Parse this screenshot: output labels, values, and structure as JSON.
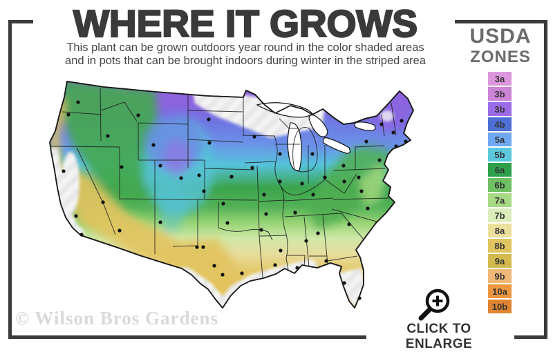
{
  "header": {
    "title": "WHERE IT GROWS",
    "subtitle_line1": "This plant can be grown outdoors year round in the color shaded areas",
    "subtitle_line2": "and in pots that can be brought indoors during winter in the striped area"
  },
  "legend": {
    "heading_top": "USDA",
    "heading_bottom": "ZONES",
    "zones": [
      {
        "label": "3a",
        "color": "#DC96DC"
      },
      {
        "label": "3b",
        "color": "#CC85D6"
      },
      {
        "label": "3b",
        "color": "#9B6BE8"
      },
      {
        "label": "4b",
        "color": "#4E6FD6"
      },
      {
        "label": "5a",
        "color": "#6FA8F0"
      },
      {
        "label": "5b",
        "color": "#5BC8DC"
      },
      {
        "label": "6a",
        "color": "#2EA04C"
      },
      {
        "label": "6b",
        "color": "#6FBF63"
      },
      {
        "label": "7a",
        "color": "#A8D984"
      },
      {
        "label": "7b",
        "color": "#DCEDBB"
      },
      {
        "label": "8a",
        "color": "#EBDF9C"
      },
      {
        "label": "8b",
        "color": "#DFC45F"
      },
      {
        "label": "9a",
        "color": "#D4B94E"
      },
      {
        "label": "9b",
        "color": "#F0B877"
      },
      {
        "label": "10a",
        "color": "#EE9741"
      },
      {
        "label": "10b",
        "color": "#E08432"
      }
    ]
  },
  "map": {
    "name": "USDA hardiness zone map of the contiguous United States",
    "dot_color": "#111111",
    "city_dots": [
      [
        99,
        166
      ],
      [
        113,
        148
      ],
      [
        156,
        197
      ],
      [
        200,
        167
      ],
      [
        222,
        210
      ],
      [
        262,
        258
      ],
      [
        232,
        240
      ],
      [
        176,
        242
      ],
      [
        92,
        248
      ],
      [
        110,
        313
      ],
      [
        118,
        340
      ],
      [
        149,
        293
      ],
      [
        173,
        334
      ],
      [
        232,
        322
      ],
      [
        302,
        173
      ],
      [
        303,
        207
      ],
      [
        368,
        198
      ],
      [
        405,
        223
      ],
      [
        452,
        223
      ],
      [
        288,
        254
      ],
      [
        295,
        277
      ],
      [
        323,
        295
      ],
      [
        329,
        323
      ],
      [
        365,
        243
      ],
      [
        335,
        256
      ],
      [
        405,
        263
      ],
      [
        437,
        266
      ],
      [
        470,
        257
      ],
      [
        382,
        282
      ],
      [
        453,
        282
      ],
      [
        427,
        308
      ],
      [
        385,
        310
      ],
      [
        378,
        333
      ],
      [
        285,
        358
      ],
      [
        294,
        358
      ],
      [
        310,
        385
      ],
      [
        322,
        398
      ],
      [
        350,
        396
      ],
      [
        398,
        384
      ],
      [
        430,
        388
      ],
      [
        406,
        363
      ],
      [
        443,
        349
      ],
      [
        460,
        338
      ],
      [
        472,
        378
      ],
      [
        498,
        410
      ],
      [
        520,
        432
      ],
      [
        505,
        325
      ],
      [
        532,
        302
      ],
      [
        523,
        277
      ],
      [
        498,
        263
      ],
      [
        497,
        240
      ],
      [
        519,
        257
      ],
      [
        530,
        205
      ],
      [
        549,
        232
      ],
      [
        552,
        180
      ],
      [
        569,
        192
      ],
      [
        581,
        175
      ],
      [
        587,
        205
      ],
      [
        573,
        212
      ]
    ]
  },
  "footer": {
    "watermark": "© Wilson Bros Gardens",
    "enlarge_label": "CLICK TO ENLARGE",
    "enlarge_icon": "magnifier-plus-icon"
  }
}
